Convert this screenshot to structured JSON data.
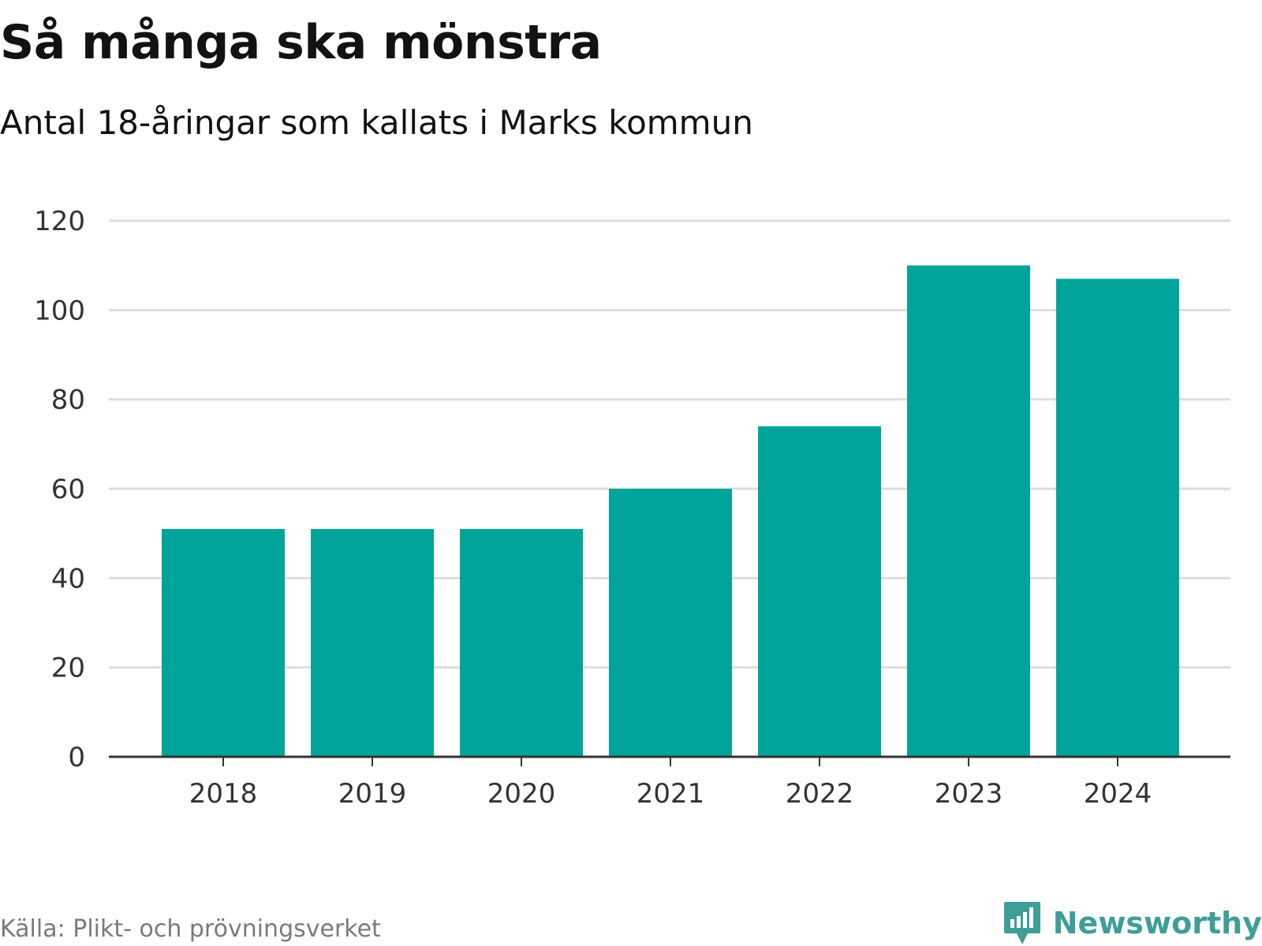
{
  "title": "Så många ska mönstra",
  "subtitle": "Antal 18-åringar som kallats i Marks kommun",
  "source": "Källa: Plikt- och prövningsverket",
  "logo": {
    "text": "Newsworthy",
    "color": "#3f9e97",
    "icon": "newsworthy-logo-icon"
  },
  "colors": {
    "bar": "#00a49a",
    "grid": "#dddddd",
    "axis": "#333333"
  },
  "chart_data": {
    "type": "bar",
    "title": "Så många ska mönstra",
    "subtitle": "Antal 18-åringar som kallats i Marks kommun",
    "categories": [
      "2018",
      "2019",
      "2020",
      "2021",
      "2022",
      "2023",
      "2024"
    ],
    "values": [
      51,
      51,
      51,
      60,
      74,
      110,
      107
    ],
    "xlabel": "",
    "ylabel": "",
    "ylim": [
      0,
      120
    ],
    "yticks": [
      0,
      20,
      40,
      60,
      80,
      100,
      120
    ],
    "grid": true,
    "legend": "none"
  }
}
